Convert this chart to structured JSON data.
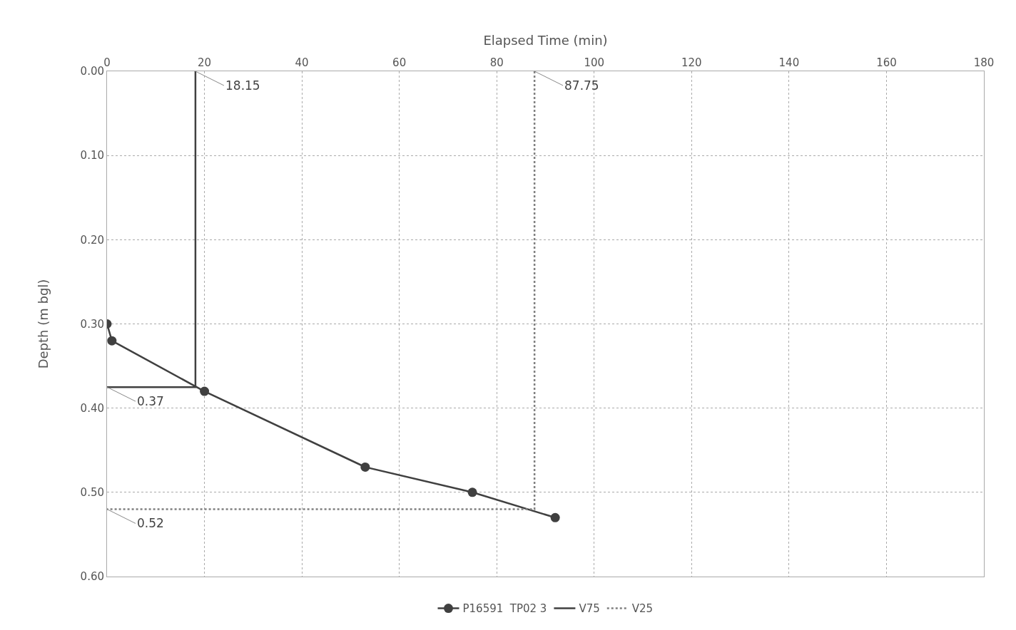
{
  "chart_data": {
    "type": "line",
    "xlabel": "Elapsed Time (min)",
    "ylabel": "Depth (m bgl)",
    "xlim": [
      0,
      180
    ],
    "xticks": [
      0,
      20,
      40,
      60,
      80,
      100,
      120,
      140,
      160,
      180
    ],
    "ylim": [
      0.6,
      0
    ],
    "yticks": [
      {
        "value": 0,
        "label": "0.00"
      },
      {
        "value": 0.1,
        "label": "0.10"
      },
      {
        "value": 0.2,
        "label": "0.20"
      },
      {
        "value": 0.3,
        "label": "0.30"
      },
      {
        "value": 0.4,
        "label": "0.40"
      },
      {
        "value": 0.5,
        "label": "0.50"
      },
      {
        "value": 0.6,
        "label": "0.60"
      }
    ],
    "series": [
      {
        "name": "P16591  TP02 3",
        "color": "#404040",
        "x": [
          0,
          1,
          20,
          53,
          75,
          92
        ],
        "values": [
          0.3,
          0.32,
          0.38,
          0.47,
          0.5,
          0.53
        ],
        "marker": "circle",
        "line_style": "solid"
      },
      {
        "name": "V75",
        "color": "#404040",
        "x": [
          18.15,
          18.15,
          0
        ],
        "values": [
          0,
          0.375,
          0.375
        ],
        "marker": "none",
        "line_style": "solid"
      },
      {
        "name": "V25",
        "color": "#808080",
        "x": [
          87.75,
          87.75,
          0
        ],
        "values": [
          0,
          0.52,
          0.52
        ],
        "marker": "none",
        "line_style": "dotted"
      }
    ],
    "annotations": [
      {
        "text": "18.15",
        "x": 18.15,
        "y": 0
      },
      {
        "text": "87.75",
        "x": 87.75,
        "y": 0
      },
      {
        "text": "0.37",
        "x": 0,
        "y": 0.375
      },
      {
        "text": "0.52",
        "x": 0,
        "y": 0.52
      }
    ],
    "grid": true,
    "legend": "bottom"
  }
}
